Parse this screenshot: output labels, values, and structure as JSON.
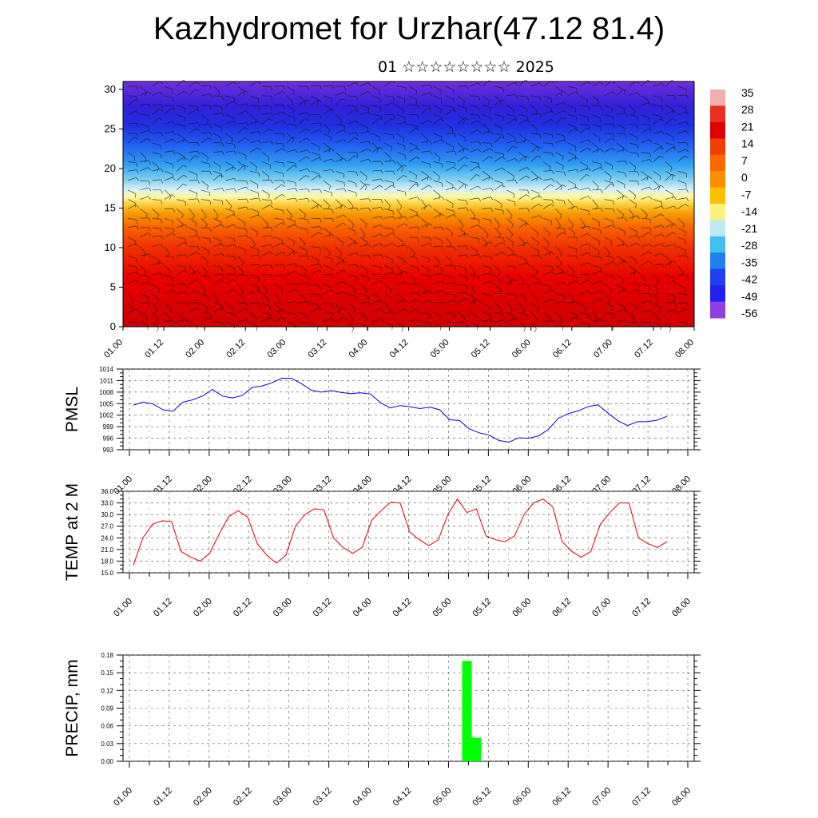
{
  "title": "Kazhydromet for Urzhar(47.12 81.4)",
  "subtitle": "01 ☆☆☆☆☆☆☆☆ 2025",
  "time_labels": [
    "01.00",
    "01.12",
    "02.00",
    "02.12",
    "03.00",
    "03.12",
    "04.00",
    "04.12",
    "05.00",
    "05.12",
    "06.00",
    "06.12",
    "07.00",
    "07.12",
    "08.00"
  ],
  "chart_data": [
    {
      "type": "heatmap",
      "ylim": [
        0,
        31
      ],
      "y_ticks": [
        0,
        5,
        10,
        15,
        20,
        25,
        30
      ],
      "colorbar_labels": [
        "35",
        "28",
        "21",
        "14",
        "7",
        "0",
        "-7",
        "-14",
        "-21",
        "-28",
        "-35",
        "-42",
        "-49",
        "-56"
      ],
      "colorbar_colors": [
        "#f0b0b0",
        "#e83020",
        "#e00000",
        "#f04000",
        "#f86800",
        "#f89000",
        "#fcc000",
        "#fcf080",
        "#c0e8f0",
        "#40c0f0",
        "#2080f0",
        "#2040f0",
        "#2020f0",
        "#9040e0"
      ],
      "freezing_level_km": 16,
      "overlay": "wind barbs"
    },
    {
      "type": "line",
      "ylabel": "PMSL",
      "ylim": [
        993,
        1014
      ],
      "y_ticks": [
        "993",
        "996",
        "999",
        "1002",
        "1005",
        "1008",
        "1011",
        "1014"
      ],
      "line_color": "#0000e0",
      "values": [
        1004.6,
        1005.4,
        1004.9,
        1003.4,
        1003.0,
        1005.4,
        1006.0,
        1007.0,
        1008.7,
        1007.0,
        1006.5,
        1007.1,
        1009.2,
        1009.6,
        1010.4,
        1011.6,
        1011.6,
        1010.2,
        1008.5,
        1008.0,
        1008.4,
        1007.9,
        1007.6,
        1007.8,
        1007.5,
        1005.2,
        1003.9,
        1004.5,
        1004.2,
        1003.7,
        1004.1,
        1003.4,
        1000.8,
        1000.6,
        998.4,
        997.4,
        996.8,
        995.4,
        995.0,
        996.1,
        996.0,
        996.6,
        998.3,
        1001.2,
        1002.4,
        1003.1,
        1004.2,
        1004.7,
        1002.6,
        1000.6,
        999.3,
        1000.3,
        1000.3,
        1000.7,
        1001.7
      ]
    },
    {
      "type": "line",
      "ylabel": "TEMP at 2 M",
      "ylim": [
        15,
        36
      ],
      "y_ticks": [
        "15.0",
        "18.0",
        "21.0",
        "24.0",
        "27.0",
        "30.0",
        "33.0",
        "36.0"
      ],
      "line_color": "#e00000",
      "values": [
        17.0,
        24.0,
        27.5,
        28.4,
        28.2,
        20.5,
        19.0,
        18.0,
        20.0,
        25.0,
        29.5,
        31.0,
        29.3,
        22.5,
        19.5,
        17.5,
        19.5,
        27.0,
        30.0,
        31.5,
        31.2,
        24.0,
        21.5,
        20.0,
        21.5,
        28.5,
        31.0,
        33.2,
        33.0,
        25.5,
        23.5,
        22.0,
        23.5,
        30.0,
        34.0,
        30.5,
        31.5,
        24.5,
        23.5,
        23.0,
        24.5,
        30.0,
        33.0,
        34.0,
        32.0,
        23.0,
        20.5,
        19.0,
        20.5,
        27.5,
        30.5,
        33.0,
        33.0,
        24.0,
        22.5,
        21.5,
        23.0
      ]
    },
    {
      "type": "bar",
      "ylabel": "PRECIP, mm",
      "ylim": [
        0,
        0.18
      ],
      "y_ticks": [
        "0.00",
        "0.03",
        "0.06",
        "0.09",
        "0.12",
        "0.15",
        "0.18"
      ],
      "bar_color": "#00ff00",
      "bars": [
        {
          "x": "05.09",
          "value": 0.17
        },
        {
          "x": "05.12",
          "value": 0.04
        }
      ]
    }
  ]
}
